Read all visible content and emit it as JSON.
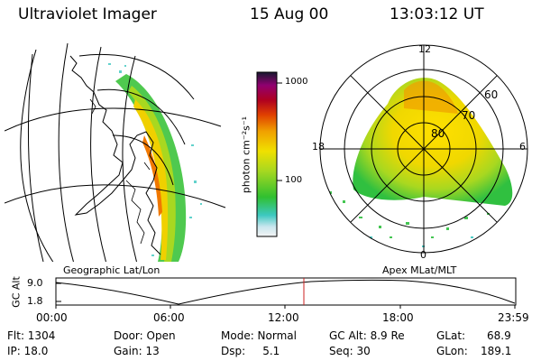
{
  "header": {
    "title": "Ultraviolet Imager",
    "date": "15 Aug 00",
    "time": "13:03:12 UT"
  },
  "panels": {
    "left_label": "Geographic Lat/Lon",
    "right_label": "Apex MLat/MLT"
  },
  "colorbar": {
    "unit_label": "photon cm⁻²s⁻¹",
    "ticks": [
      "1000",
      "100"
    ]
  },
  "polar": {
    "mlt_labels": [
      "12",
      "18",
      "6",
      "0"
    ],
    "mlat_labels": [
      "60",
      "70",
      "80"
    ]
  },
  "timeline": {
    "axis_title": "GC Alt",
    "y_ticks": [
      "9.0",
      "1.8"
    ],
    "x_ticks": [
      "00:00",
      "06:00",
      "12:00",
      "18:00",
      "23:59"
    ],
    "marker_time": "13:03"
  },
  "info": {
    "flt": "Flt: 1304",
    "ip": "IP: 18.0",
    "door": "Door: Open",
    "gain": "Gain: 13",
    "mode": "Mode: Normal",
    "dsp": "Dsp:     5.1",
    "gcalt": "GC Alt: 8.9 Re",
    "seq": "Seq: 30",
    "glat_l": "GLat:",
    "glat_v": "68.9",
    "glon_l": "GLon:",
    "glon_v": "189.1"
  },
  "colors": {
    "marker": "#cc2222",
    "accent_orange": "#f07800",
    "yellow": "#f0e000",
    "green": "#30c030"
  }
}
